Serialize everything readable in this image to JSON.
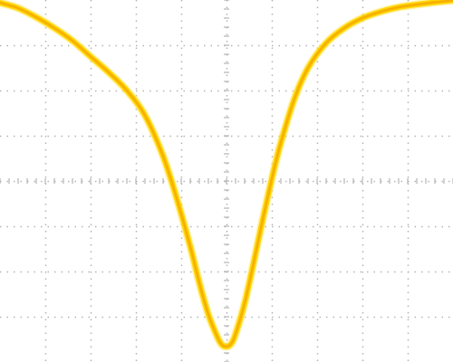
{
  "chart_data": {
    "type": "line",
    "title": "",
    "xlabel": "",
    "ylabel": "",
    "grid": true,
    "grid_divisions": {
      "x": 10,
      "y": 8
    },
    "minor_ticks_per_division": 5,
    "xlim": [
      0,
      10
    ],
    "ylim": [
      0,
      8
    ],
    "colors": {
      "background": "#ffffff",
      "grid": "#b4b4b4",
      "trace_main": "#ffd400",
      "trace_core": "#f5a800",
      "trace_glow": "#ffe43a"
    },
    "series": [
      {
        "x": [
          0,
          0.4,
          0.8,
          1.2,
          1.6,
          2.0,
          2.4,
          2.8,
          3.2,
          3.6,
          3.9,
          4.2,
          4.4,
          4.6,
          4.8,
          4.9,
          5.0,
          5.1,
          5.2,
          5.4,
          5.6,
          5.8,
          6.0,
          6.2,
          6.5,
          6.8,
          7.2,
          7.6,
          8.0,
          8.4,
          8.8,
          9.2,
          9.6,
          10.0
        ],
        "y": [
          7.94,
          7.82,
          7.62,
          7.38,
          7.1,
          6.75,
          6.4,
          6.0,
          5.45,
          4.55,
          3.62,
          2.55,
          1.75,
          1.05,
          0.55,
          0.38,
          0.34,
          0.4,
          0.62,
          1.3,
          2.2,
          3.15,
          4.05,
          4.85,
          5.82,
          6.5,
          7.05,
          7.38,
          7.6,
          7.74,
          7.84,
          7.9,
          7.95,
          7.99
        ]
      }
    ]
  }
}
